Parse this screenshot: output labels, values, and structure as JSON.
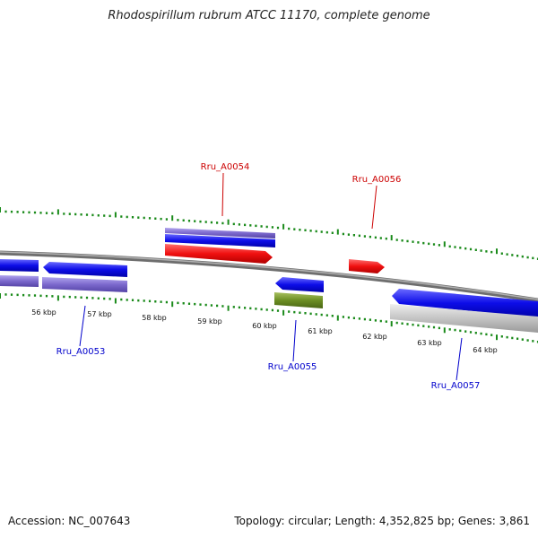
{
  "title": "Rhodospirillum rubrum ATCC 11170, complete genome",
  "footer": {
    "accession": "Accession: NC_007643",
    "topology": "Topology: circular; Length: 4,352,825 bp; Genes: 3,861"
  },
  "colors": {
    "tick": "#1a8a1a",
    "backbone": "#888888",
    "blue": "#1010ee",
    "purple": "#7b68cc",
    "red": "#ee1010",
    "olive": "#6b8e23",
    "gray": "#c0c0c0",
    "label_red": "#cc0000",
    "label_blue": "#0000cc"
  },
  "scale_labels": [
    "56 kbp",
    "57 kbp",
    "58 kbp",
    "59 kbp",
    "60 kbp",
    "61 kbp",
    "62 kbp",
    "63 kbp",
    "64 kbp"
  ],
  "gene_labels": {
    "a53": "Rru_A0053",
    "a54": "Rru_A0054",
    "a55": "Rru_A0055",
    "a56": "Rru_A0056",
    "a57": "Rru_A0057"
  }
}
